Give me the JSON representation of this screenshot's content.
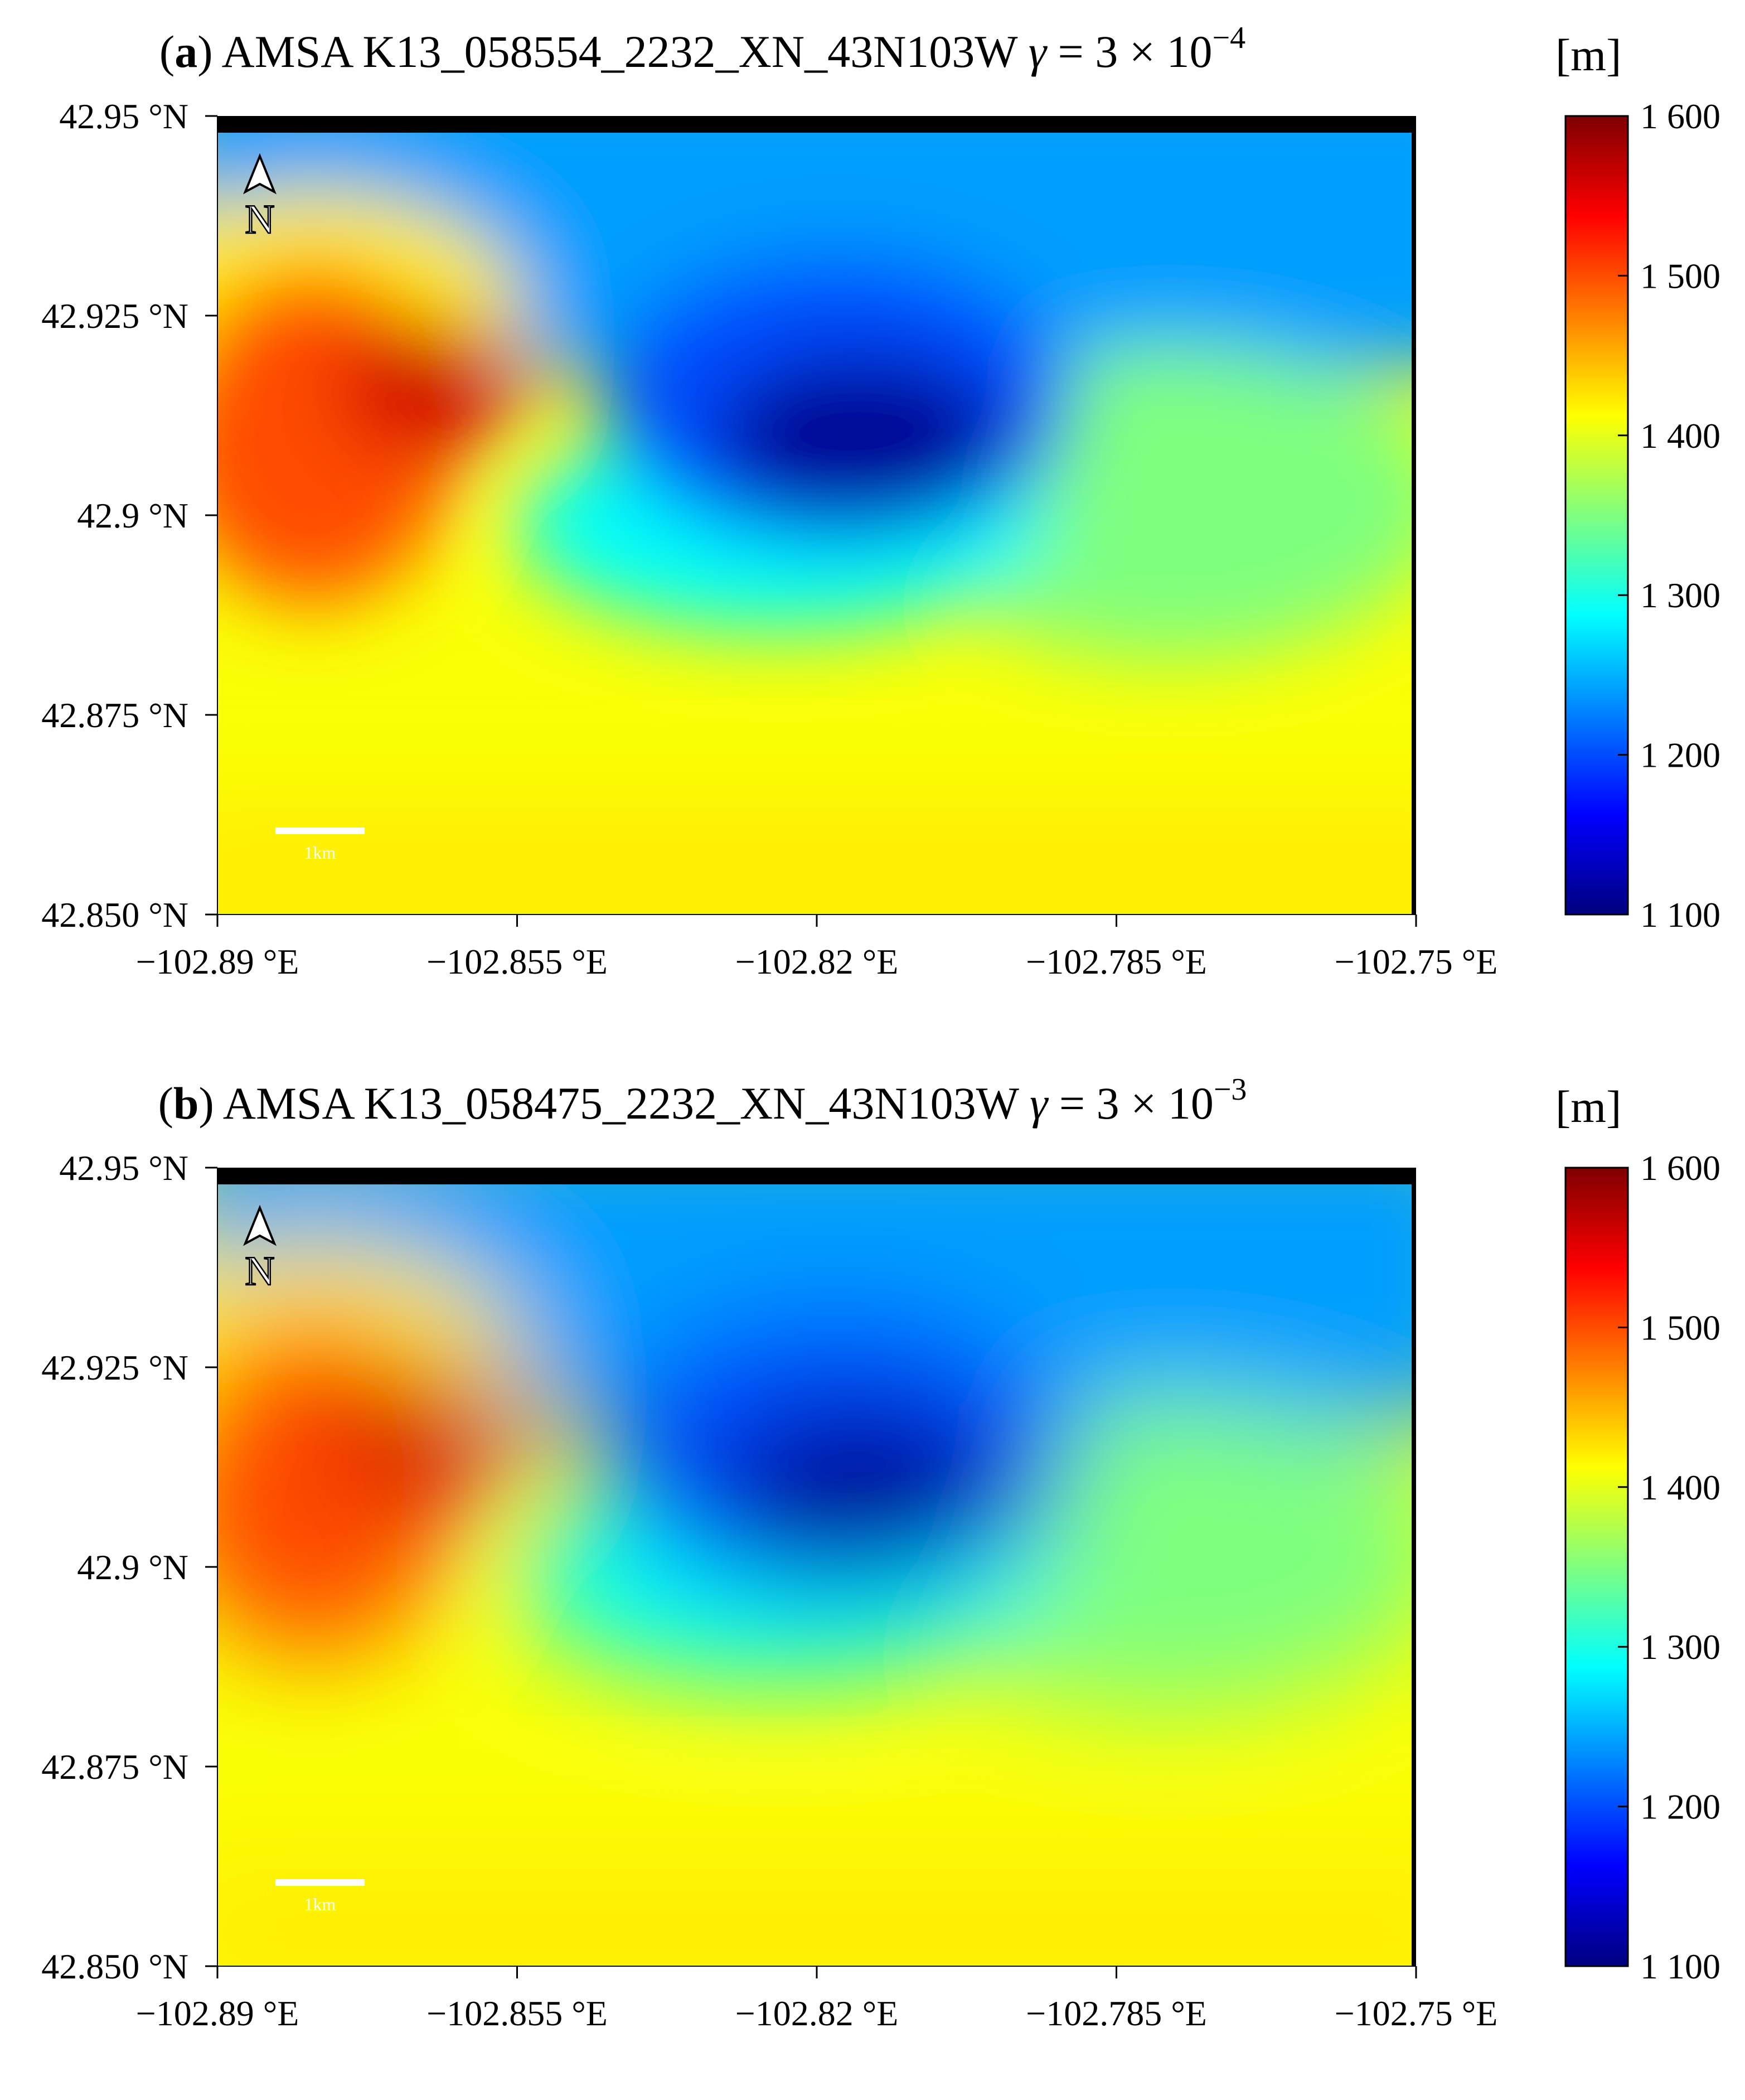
{
  "panels": [
    {
      "label": "a",
      "title": "AMSA K13_058554_2232_XN_43N103W",
      "gamma_symbol": "γ",
      "gamma_value": "= 3 × 10",
      "gamma_exponent": "−4",
      "scale_bar_label": "1km",
      "north_label": "N"
    },
    {
      "label": "b",
      "title": "AMSA K13_058475_2232_XN_43N103W",
      "gamma_symbol": "γ",
      "gamma_value": "= 3 × 10",
      "gamma_exponent": "−3",
      "scale_bar_label": "1km",
      "north_label": "N"
    }
  ],
  "axes": {
    "lat_ticks": [
      "42.95 °N",
      "42.925 °N",
      "42.9 °N",
      "42.875 °N",
      "42.850 °N"
    ],
    "lat_values": [
      42.95,
      42.925,
      42.9,
      42.875,
      42.85
    ],
    "lon_ticks": [
      "−102.89 °E",
      "−102.855 °E",
      "−102.82 °E",
      "−102.785 °E",
      "−102.75 °E"
    ],
    "lon_values": [
      -102.89,
      -102.855,
      -102.82,
      -102.785,
      -102.75
    ],
    "lat_range": [
      42.85,
      42.95
    ],
    "lon_range": [
      -102.89,
      -102.75
    ]
  },
  "colorbar": {
    "unit": "[m]",
    "ticks": [
      "1 600",
      "1 500",
      "1 400",
      "1 300",
      "1 200",
      "1 100"
    ],
    "range": [
      1100,
      1600
    ],
    "colormap": [
      "#00007f",
      "#0000ff",
      "#007fff",
      "#00ffff",
      "#7fff7f",
      "#ffff00",
      "#ff7f00",
      "#ff0000",
      "#7f0000"
    ]
  },
  "features": {
    "high_ridge": {
      "elevation_m": 1560,
      "lon": -102.865,
      "lat": 42.916
    },
    "depression": {
      "elevation_m": 1110,
      "lon": -102.815,
      "lat": 42.91
    },
    "plain_south": {
      "elevation_m": 1410
    },
    "plain_east": {
      "elevation_m": 1350
    }
  }
}
